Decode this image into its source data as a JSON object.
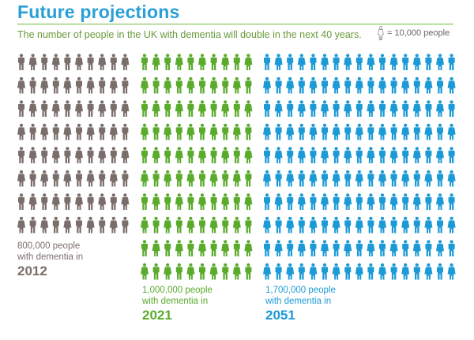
{
  "title": "Future projections",
  "subtitle": "The number of people in the UK with dementia will double in the next 40 years.",
  "legend": {
    "label": "= 10,000 people",
    "icon": "person-outline-icon"
  },
  "chart_data": {
    "type": "pictograph",
    "unit": "10,000 people",
    "series": [
      {
        "year": "2012",
        "people": 800000,
        "icons": 80,
        "cols": 10,
        "color": "#7a6e6a",
        "caption_line1": "800,000 people",
        "caption_line2": "with dementia in"
      },
      {
        "year": "2021",
        "people": 1000000,
        "icons": 100,
        "cols": 10,
        "color": "#5aab2c",
        "caption_line1": "1,000,000 people",
        "caption_line2": "with dementia in"
      },
      {
        "year": "2051",
        "people": 1700000,
        "icons": 170,
        "cols": 17,
        "color": "#1c9ad6",
        "caption_line1": "1,700,000 people",
        "caption_line2": "with dementia in"
      }
    ]
  }
}
